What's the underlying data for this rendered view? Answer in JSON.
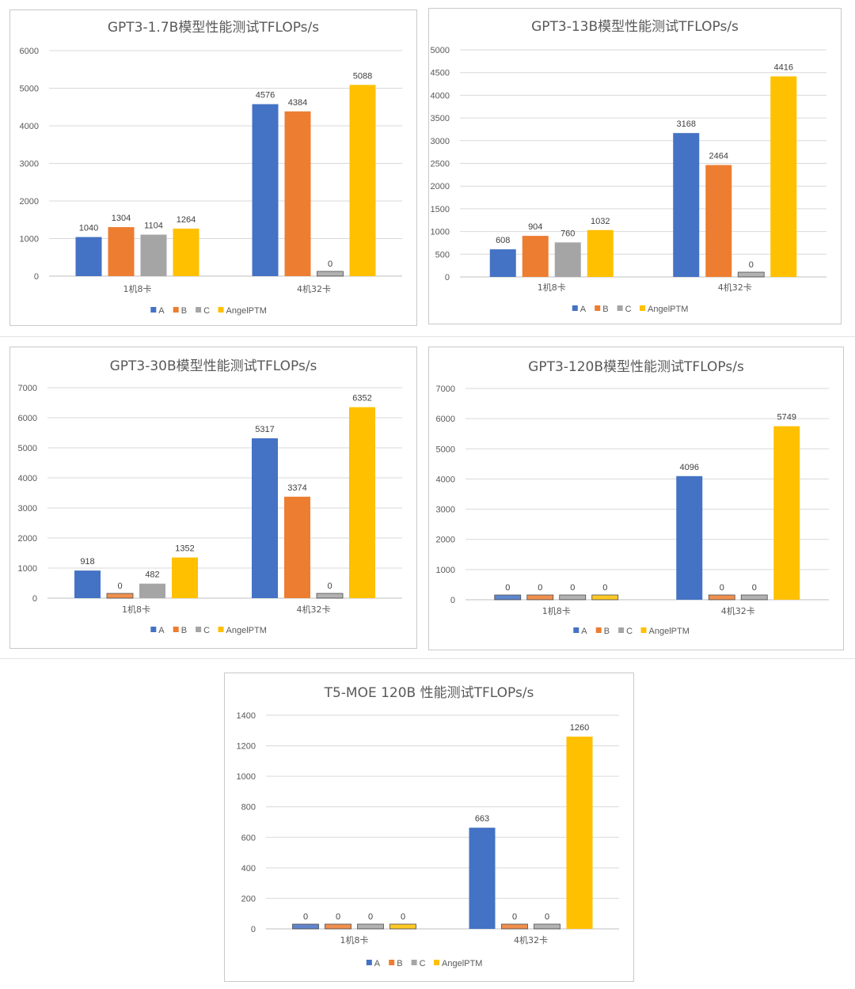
{
  "chart_data": [
    {
      "type": "bar",
      "title": "GPT3-1.7B模型性能测试TFLOPs/s",
      "categories": [
        "1机8卡",
        "4机32卡"
      ],
      "series": [
        {
          "name": "A",
          "values": [
            1040,
            4576
          ]
        },
        {
          "name": "B",
          "values": [
            1304,
            4384
          ]
        },
        {
          "name": "C",
          "values": [
            1104,
            0
          ]
        },
        {
          "name": "AngelPTM",
          "values": [
            1264,
            5088
          ]
        }
      ],
      "yticks": [
        "0",
        "1000",
        "2000",
        "3000",
        "4000",
        "5000",
        "6000"
      ],
      "ylim": [
        0,
        6000
      ],
      "legend": "bottom",
      "grid": true
    },
    {
      "type": "bar",
      "title": "GPT3-13B模型性能测试TFLOPs/s",
      "categories": [
        "1机8卡",
        "4机32卡"
      ],
      "series": [
        {
          "name": "A",
          "values": [
            608,
            3168
          ]
        },
        {
          "name": "B",
          "values": [
            904,
            2464
          ]
        },
        {
          "name": "C",
          "values": [
            760,
            0
          ]
        },
        {
          "name": "AngelPTM",
          "values": [
            1032,
            4416
          ]
        }
      ],
      "yticks": [
        "0",
        "500",
        "1000",
        "1500",
        "2000",
        "2500",
        "3000",
        "3500",
        "4000",
        "4500",
        "5000"
      ],
      "ylim": [
        0,
        5000
      ],
      "legend": "bottom",
      "grid": true
    },
    {
      "type": "bar",
      "title": "GPT3-30B模型性能测试TFLOPs/s",
      "categories": [
        "1机8卡",
        "4机32卡"
      ],
      "series": [
        {
          "name": "A",
          "values": [
            918,
            5317
          ]
        },
        {
          "name": "B",
          "values": [
            0,
            3374
          ]
        },
        {
          "name": "C",
          "values": [
            482,
            0
          ]
        },
        {
          "name": "AngelPTM",
          "values": [
            1352,
            6352
          ]
        }
      ],
      "yticks": [
        "0",
        "1000",
        "2000",
        "3000",
        "4000",
        "5000",
        "6000",
        "7000"
      ],
      "ylim": [
        0,
        7000
      ],
      "legend": "bottom",
      "grid": true
    },
    {
      "type": "bar",
      "title": "GPT3-120B模型性能测试TFLOPs/s",
      "categories": [
        "1机8卡",
        "4机32卡"
      ],
      "series": [
        {
          "name": "A",
          "values": [
            0,
            4096
          ]
        },
        {
          "name": "B",
          "values": [
            0,
            0
          ]
        },
        {
          "name": "C",
          "values": [
            0,
            0
          ]
        },
        {
          "name": "AngelPTM",
          "values": [
            0,
            5749
          ]
        }
      ],
      "yticks": [
        "0",
        "1000",
        "2000",
        "3000",
        "4000",
        "5000",
        "6000",
        "7000"
      ],
      "ylim": [
        0,
        7000
      ],
      "legend": "bottom",
      "grid": true
    },
    {
      "type": "bar",
      "title": "T5-MOE 120B 性能测试TFLOPs/s",
      "categories": [
        "1机8卡",
        "4机32卡"
      ],
      "series": [
        {
          "name": "A",
          "values": [
            0,
            663
          ]
        },
        {
          "name": "B",
          "values": [
            0,
            0
          ]
        },
        {
          "name": "C",
          "values": [
            0,
            0
          ]
        },
        {
          "name": "AngelPTM",
          "values": [
            0,
            1260
          ]
        }
      ],
      "yticks": [
        "0",
        "200",
        "400",
        "600",
        "800",
        "1000",
        "1200",
        "1400"
      ],
      "ylim": [
        0,
        1400
      ],
      "legend": "bottom",
      "grid": true
    }
  ],
  "colors": {
    "A": "#4472c4",
    "B": "#ed7d31",
    "C": "#a5a5a5",
    "AngelPTM": "#ffc000",
    "zero_fill": "#8ea9c9",
    "zero_stroke": "#000000"
  }
}
